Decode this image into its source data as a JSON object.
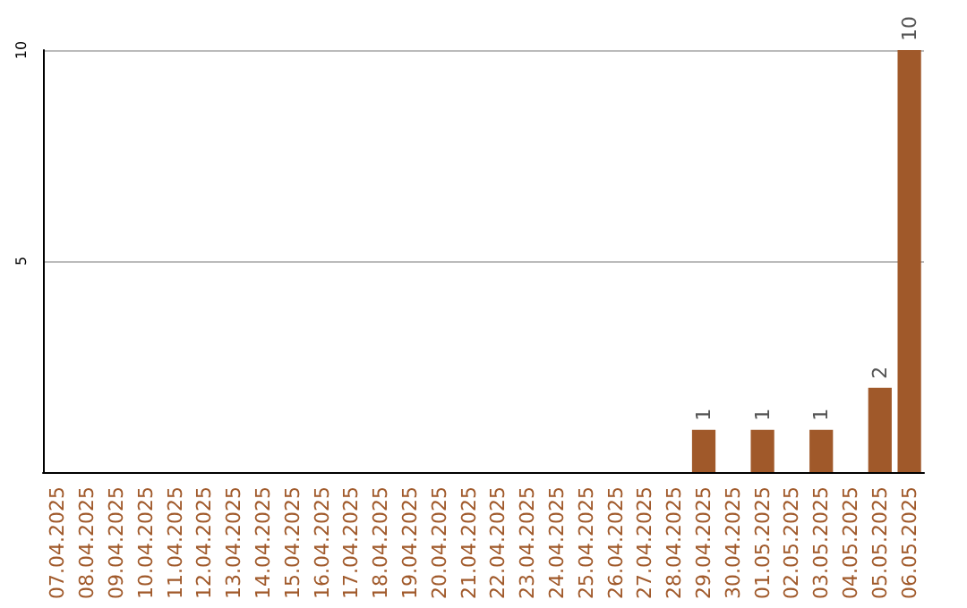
{
  "chart_data": {
    "type": "bar",
    "categories": [
      "07.04.2025",
      "08.04.2025",
      "09.04.2025",
      "10.04.2025",
      "11.04.2025",
      "12.04.2025",
      "13.04.2025",
      "14.04.2025",
      "15.04.2025",
      "16.04.2025",
      "17.04.2025",
      "18.04.2025",
      "19.04.2025",
      "20.04.2025",
      "21.04.2025",
      "22.04.2025",
      "23.04.2025",
      "24.04.2025",
      "25.04.2025",
      "26.04.2025",
      "27.04.2025",
      "28.04.2025",
      "29.04.2025",
      "30.04.2025",
      "01.05.2025",
      "02.05.2025",
      "03.05.2025",
      "04.05.2025",
      "05.05.2025",
      "06.05.2025"
    ],
    "values": [
      0,
      0,
      0,
      0,
      0,
      0,
      0,
      0,
      0,
      0,
      0,
      0,
      0,
      0,
      0,
      0,
      0,
      0,
      0,
      0,
      0,
      0,
      1,
      0,
      1,
      0,
      1,
      0,
      2,
      10
    ],
    "value_labels": [
      null,
      null,
      null,
      null,
      null,
      null,
      null,
      null,
      null,
      null,
      null,
      null,
      null,
      null,
      null,
      null,
      null,
      null,
      null,
      null,
      null,
      null,
      "1",
      null,
      "1",
      null,
      "1",
      null,
      "2",
      "10"
    ],
    "color": "#a0592a",
    "ylim": [
      0,
      10
    ],
    "yticks": [
      5,
      10
    ],
    "grid": "y"
  }
}
